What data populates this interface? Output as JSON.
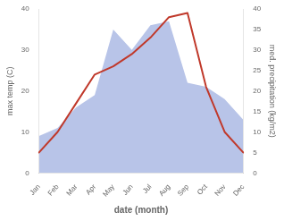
{
  "chart_data": {
    "type": "line",
    "xlabel": "date (month)",
    "ylabel": "max temp (C)",
    "y2label": "med. precipitation (kg/m2)",
    "categories": [
      "Jan",
      "Feb",
      "Mar",
      "Apr",
      "May",
      "Jun",
      "Jul",
      "Aug",
      "Sep",
      "Oct",
      "Nov",
      "Dec"
    ],
    "series": [
      {
        "type": "line",
        "axis": "y",
        "color": "#c0392b",
        "values": [
          5,
          10,
          17,
          24,
          26,
          29,
          33,
          38,
          39,
          21,
          10,
          5
        ]
      },
      {
        "type": "area",
        "axis": "y2",
        "color": "#b8c4e8",
        "values": [
          9,
          11,
          16,
          19,
          35,
          30,
          36,
          37,
          22,
          21,
          18,
          13
        ]
      }
    ],
    "ylim": [
      0,
      40
    ],
    "yticks": [
      0,
      10,
      20,
      30,
      40
    ],
    "y2lim": [
      0,
      40
    ],
    "y2ticks": [
      0,
      5,
      10,
      15,
      20,
      25,
      30,
      35,
      40
    ],
    "grid": false
  }
}
